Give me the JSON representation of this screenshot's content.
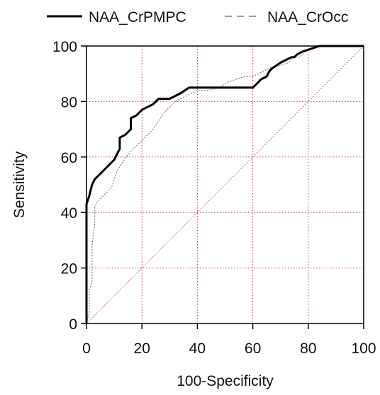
{
  "chart_data": {
    "type": "line",
    "title": "",
    "xlabel": "100-Specificity",
    "ylabel": "Sensitivity",
    "xlim": [
      0,
      100
    ],
    "ylim": [
      0,
      100
    ],
    "x_ticks": [
      "0",
      "20",
      "40",
      "60",
      "80",
      "100"
    ],
    "y_ticks": [
      "0",
      "20",
      "40",
      "60",
      "80",
      "100"
    ],
    "grid": true,
    "legend_position": "top",
    "colors": {
      "grid": "#d23c3c",
      "series_naa_crpmpc": "#000000",
      "series_naa_crocc": "#666666",
      "reference": "#d23c3c",
      "axes": "#000000"
    },
    "series": [
      {
        "name": "NAA_CrPMPC",
        "style": "solid",
        "points": [
          [
            0,
            0
          ],
          [
            0,
            30
          ],
          [
            0,
            43
          ],
          [
            1,
            46
          ],
          [
            2,
            50
          ],
          [
            3,
            52
          ],
          [
            5,
            54
          ],
          [
            7,
            56
          ],
          [
            9,
            58
          ],
          [
            10,
            59
          ],
          [
            11,
            61
          ],
          [
            12,
            63
          ],
          [
            12,
            67
          ],
          [
            14,
            68
          ],
          [
            16,
            70
          ],
          [
            16,
            74
          ],
          [
            18,
            75
          ],
          [
            20,
            77
          ],
          [
            22,
            78
          ],
          [
            24,
            79
          ],
          [
            26,
            81
          ],
          [
            30,
            81
          ],
          [
            32,
            82
          ],
          [
            34,
            83
          ],
          [
            37,
            85
          ],
          [
            60,
            85
          ],
          [
            61,
            86
          ],
          [
            62,
            87
          ],
          [
            63,
            88
          ],
          [
            65,
            89
          ],
          [
            66,
            91
          ],
          [
            67,
            92
          ],
          [
            70,
            94
          ],
          [
            72,
            95
          ],
          [
            74,
            96
          ],
          [
            75,
            96
          ],
          [
            76,
            97
          ],
          [
            78,
            98
          ],
          [
            81,
            99
          ],
          [
            84,
            100
          ],
          [
            100,
            100
          ]
        ]
      },
      {
        "name": "NAA_CrOcc",
        "style": "dashed",
        "points": [
          [
            0,
            0
          ],
          [
            1,
            4
          ],
          [
            1,
            12
          ],
          [
            2,
            15
          ],
          [
            2,
            28
          ],
          [
            3,
            36
          ],
          [
            3,
            42
          ],
          [
            4,
            44
          ],
          [
            5,
            45
          ],
          [
            7,
            47
          ],
          [
            9,
            49
          ],
          [
            11,
            55
          ],
          [
            13,
            58
          ],
          [
            15,
            61
          ],
          [
            17,
            63
          ],
          [
            19,
            65
          ],
          [
            21,
            67
          ],
          [
            24,
            70
          ],
          [
            26,
            73
          ],
          [
            28,
            76
          ],
          [
            30,
            78
          ],
          [
            32,
            80
          ],
          [
            36,
            82
          ],
          [
            40,
            84
          ],
          [
            44,
            84
          ],
          [
            48,
            85
          ],
          [
            51,
            87
          ],
          [
            54,
            88
          ],
          [
            57,
            89
          ],
          [
            60,
            89
          ],
          [
            64,
            91
          ],
          [
            66,
            92
          ],
          [
            70,
            93
          ],
          [
            73,
            94
          ],
          [
            75,
            96
          ],
          [
            77,
            96
          ],
          [
            79,
            98
          ],
          [
            81,
            99
          ],
          [
            83,
            100
          ],
          [
            100,
            100
          ]
        ]
      }
    ]
  }
}
